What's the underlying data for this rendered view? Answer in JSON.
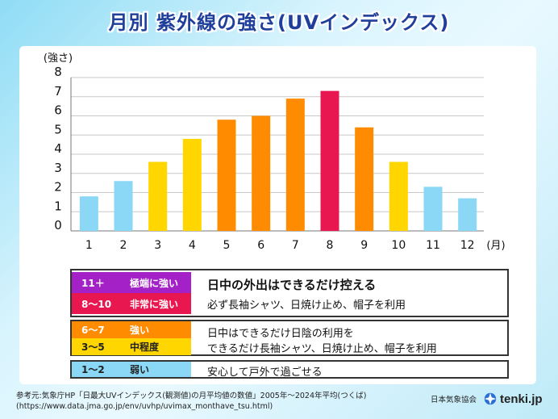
{
  "title": "月別 紫外線の強さ(UVインデックス)",
  "chart_data": {
    "type": "bar",
    "categories": [
      "1",
      "2",
      "3",
      "4",
      "5",
      "6",
      "7",
      "8",
      "9",
      "10",
      "11",
      "12"
    ],
    "values": [
      1.8,
      2.6,
      3.6,
      4.8,
      5.8,
      6.0,
      6.9,
      7.3,
      5.4,
      3.6,
      2.3,
      1.7
    ],
    "colors": [
      "#8ad8f5",
      "#8ad8f5",
      "#ffd600",
      "#ffd600",
      "#ff8c00",
      "#ff8c00",
      "#ff8c00",
      "#e8174f",
      "#ff8c00",
      "#ffd600",
      "#8ad8f5",
      "#8ad8f5"
    ],
    "ylabel": "(強さ)",
    "xunit": "(月)",
    "ylim": [
      0,
      8
    ],
    "yticks": [
      "0",
      "1",
      "2",
      "3",
      "4",
      "5",
      "6",
      "7",
      "8"
    ],
    "grid": true
  },
  "legend": {
    "groups": [
      {
        "rows": [
          {
            "range": "11＋",
            "label": "極端に強い",
            "color": "#a421c7",
            "text_color": "#ffffff"
          },
          {
            "range": "8〜10",
            "label": "非常に強い",
            "color": "#e8174f",
            "text_color": "#ffffff"
          }
        ],
        "lines": [
          "日中の外出はできるだけ控える",
          "必ず長袖シャツ、日焼け止め、帽子を利用"
        ]
      },
      {
        "rows": [
          {
            "range": "6〜7",
            "label": "強い",
            "color": "#ff8c00",
            "text_color": "#ffffff"
          },
          {
            "range": "3〜5",
            "label": "中程度",
            "color": "#ffd600",
            "text_color": "#222222"
          }
        ],
        "lines": [
          "日中はできるだけ日陰の利用を",
          "できるだけ長袖シャツ、日焼け止め、帽子を利用"
        ]
      },
      {
        "rows": [
          {
            "range": "1〜2",
            "label": "弱い",
            "color": "#8ad8f5",
            "text_color": "#222222"
          }
        ],
        "lines": [
          "安心して戸外で過ごせる"
        ]
      }
    ]
  },
  "footer": {
    "line1": "参考元:気象庁HP「日最大UVインデックス(観測値)の月平均値の数値」2005年〜2024年平均(つくば)",
    "line2": "(https://www.data.jma.go.jp/env/uvhp/uvimax_monthave_tsu.html)"
  },
  "brand": {
    "org": "日本気象協会",
    "name": "tenki.jp"
  }
}
